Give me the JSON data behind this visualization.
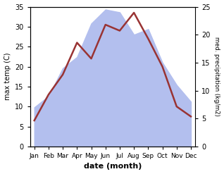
{
  "months": [
    "Jan",
    "Feb",
    "Mar",
    "Apr",
    "May",
    "Jun",
    "Jul",
    "Aug",
    "Sep",
    "Oct",
    "Nov",
    "Dec"
  ],
  "month_positions": [
    0,
    1,
    2,
    3,
    4,
    5,
    6,
    7,
    8,
    9,
    10,
    11
  ],
  "temperature": [
    6.5,
    13.0,
    18.0,
    26.0,
    22.0,
    30.5,
    29.0,
    33.5,
    27.0,
    20.0,
    10.0,
    7.5
  ],
  "precipitation": [
    7.0,
    9.0,
    14.0,
    16.0,
    22.0,
    24.5,
    24.0,
    20.0,
    21.0,
    15.0,
    11.0,
    8.0
  ],
  "temp_color": "#993333",
  "precip_color": "#b3bfee",
  "temp_ylim": [
    0,
    35
  ],
  "precip_ylim": [
    0,
    25
  ],
  "temp_yticks": [
    0,
    5,
    10,
    15,
    20,
    25,
    30,
    35
  ],
  "precip_yticks": [
    0,
    5,
    10,
    15,
    20,
    25
  ],
  "xlabel": "date (month)",
  "ylabel_left": "max temp (C)",
  "ylabel_right": "med. precipitation (kg/m2)",
  "bg_color": "#ffffff",
  "line_width": 1.8
}
